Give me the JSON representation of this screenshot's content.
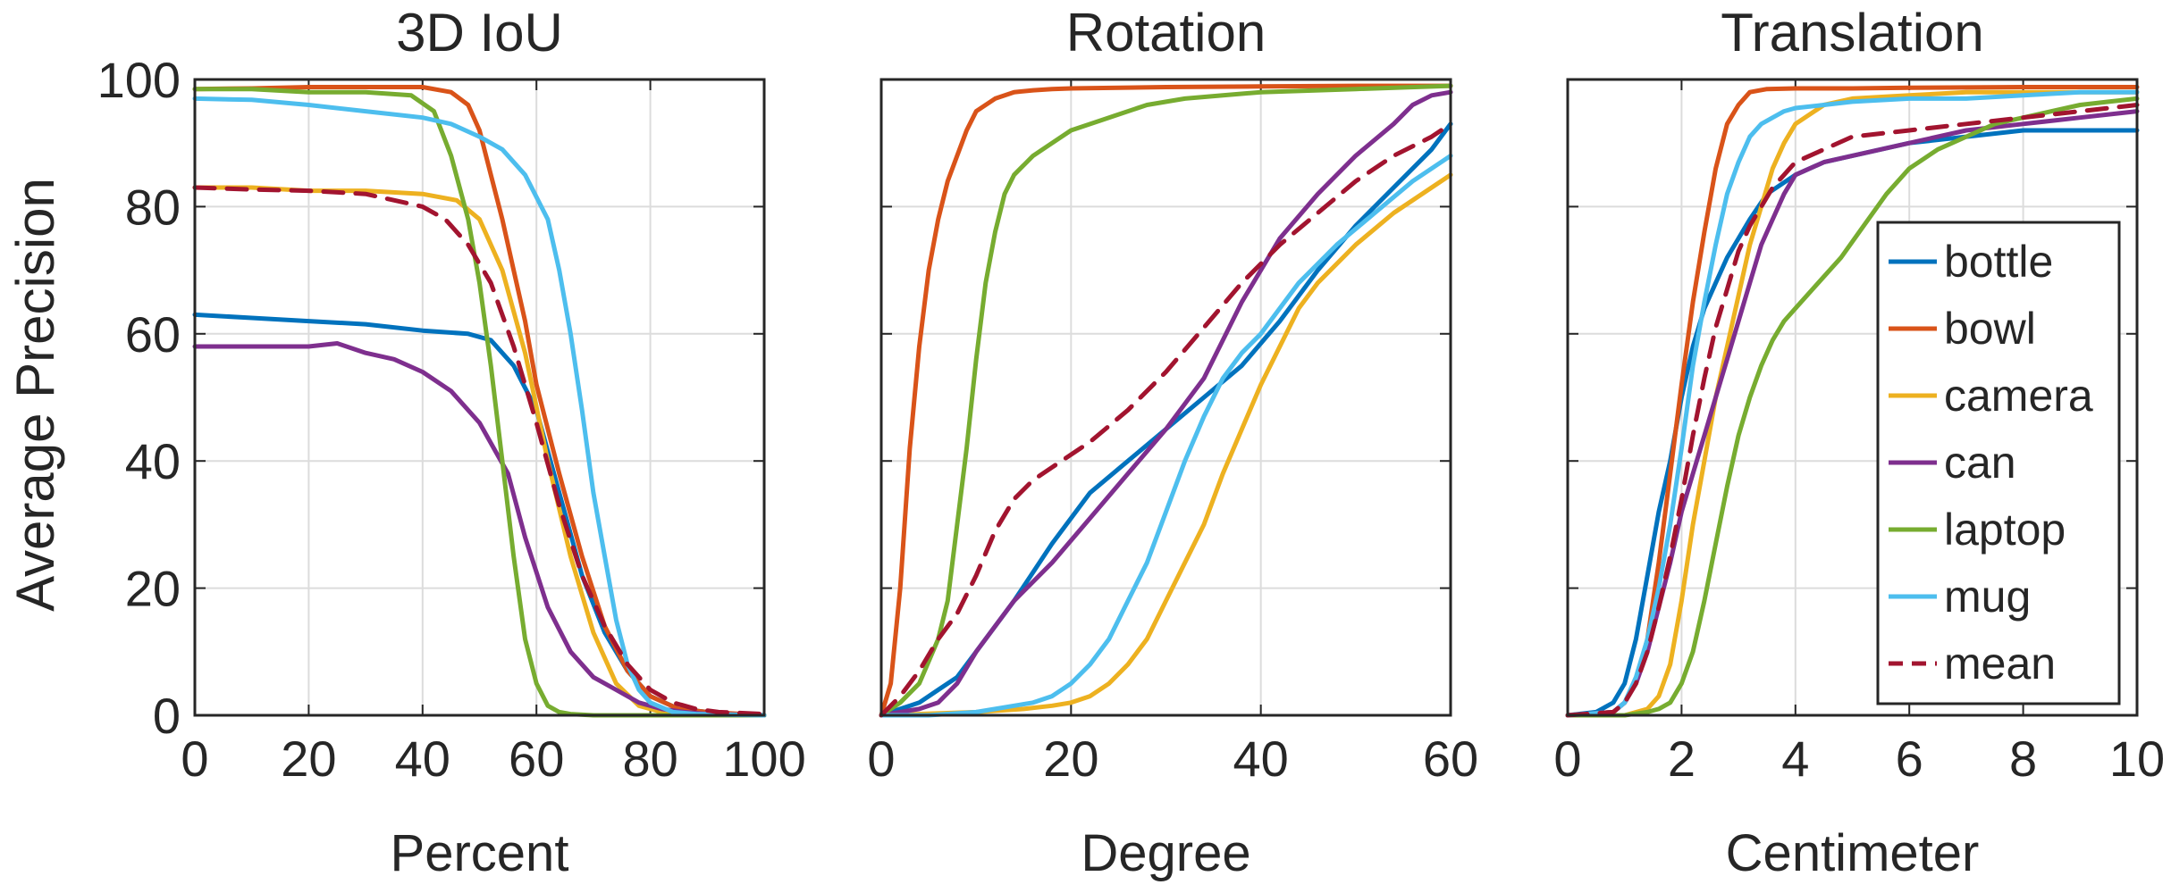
{
  "chart_data": [
    {
      "type": "line",
      "title": "3D IoU",
      "xlabel": "Percent",
      "ylabel": "Average Precision",
      "xlim": [
        0,
        100
      ],
      "ylim": [
        0,
        100
      ],
      "xticks": [
        0,
        20,
        40,
        60,
        80,
        100
      ],
      "yticks": [
        0,
        20,
        40,
        60,
        80,
        100
      ],
      "grid": true,
      "series": [
        {
          "name": "bottle",
          "x": [
            0,
            10,
            20,
            30,
            40,
            48,
            52,
            56,
            60,
            64,
            68,
            72,
            76,
            80,
            85,
            90,
            95,
            100
          ],
          "y": [
            63,
            62.5,
            62,
            61.5,
            60.5,
            60,
            59,
            55,
            48,
            35,
            22,
            13,
            7,
            3,
            1,
            0.5,
            0.2,
            0
          ]
        },
        {
          "name": "bowl",
          "x": [
            0,
            10,
            20,
            30,
            40,
            45,
            48,
            50,
            52,
            54,
            56,
            58,
            60,
            64,
            68,
            72,
            76,
            80,
            85,
            90,
            100
          ],
          "y": [
            98.5,
            98.6,
            98.8,
            98.8,
            98.8,
            98,
            96,
            92,
            85,
            78,
            70,
            62,
            52,
            38,
            25,
            14,
            7,
            3,
            1,
            0.5,
            0
          ]
        },
        {
          "name": "camera",
          "x": [
            0,
            10,
            20,
            30,
            40,
            46,
            50,
            54,
            58,
            62,
            66,
            70,
            74,
            78,
            82,
            86,
            100
          ],
          "y": [
            83,
            83,
            82.5,
            82.5,
            82,
            81,
            78,
            70,
            57,
            40,
            25,
            13,
            5,
            1.5,
            0.5,
            0,
            0
          ]
        },
        {
          "name": "can",
          "x": [
            0,
            10,
            20,
            25,
            30,
            35,
            40,
            45,
            50,
            55,
            58,
            62,
            66,
            70,
            74,
            78,
            82,
            86,
            90,
            100
          ],
          "y": [
            58,
            58,
            58,
            58.5,
            57,
            56,
            54,
            51,
            46,
            38,
            28,
            17,
            10,
            6,
            4,
            2,
            1,
            0.5,
            0.2,
            0
          ]
        },
        {
          "name": "laptop",
          "x": [
            0,
            10,
            20,
            30,
            38,
            42,
            45,
            48,
            50,
            52,
            54,
            56,
            58,
            60,
            62,
            64,
            66,
            70,
            80,
            100
          ],
          "y": [
            98.5,
            98.5,
            98,
            98,
            97.5,
            95,
            88,
            78,
            68,
            55,
            40,
            25,
            12,
            5,
            1.5,
            0.5,
            0.2,
            0,
            0,
            0
          ]
        },
        {
          "name": "mug",
          "x": [
            0,
            10,
            20,
            30,
            40,
            45,
            50,
            54,
            58,
            62,
            64,
            66,
            68,
            70,
            72,
            74,
            76,
            78,
            80,
            84,
            88,
            100
          ],
          "y": [
            97,
            96.8,
            96,
            95,
            94,
            93,
            91,
            89,
            85,
            78,
            70,
            60,
            48,
            35,
            25,
            15,
            8,
            4,
            2,
            0.5,
            0.2,
            0
          ]
        },
        {
          "name": "mean",
          "x": [
            0,
            10,
            20,
            30,
            40,
            44,
            48,
            52,
            56,
            60,
            64,
            68,
            72,
            76,
            80,
            84,
            88,
            92,
            100
          ],
          "y": [
            83,
            82.7,
            82.5,
            82,
            80,
            78,
            74,
            68,
            58,
            46,
            33,
            22,
            14,
            8,
            4,
            2,
            1,
            0.5,
            0.2
          ]
        }
      ]
    },
    {
      "type": "line",
      "title": "Rotation",
      "xlabel": "Degree",
      "ylabel": "",
      "xlim": [
        0,
        60
      ],
      "ylim": [
        0,
        100
      ],
      "xticks": [
        0,
        20,
        40,
        60
      ],
      "yticks": [
        0,
        20,
        40,
        60,
        80,
        100
      ],
      "grid": true,
      "series": [
        {
          "name": "bottle",
          "x": [
            0,
            2,
            4,
            6,
            8,
            10,
            14,
            18,
            22,
            26,
            30,
            34,
            38,
            42,
            46,
            50,
            54,
            58,
            60
          ],
          "y": [
            0,
            1,
            2,
            4,
            6,
            10,
            18,
            27,
            35,
            40,
            45,
            50,
            55,
            62,
            70,
            77,
            83,
            89,
            93
          ]
        },
        {
          "name": "bowl",
          "x": [
            0,
            1,
            2,
            3,
            4,
            5,
            6,
            7,
            8,
            9,
            10,
            12,
            14,
            16,
            18,
            20,
            30,
            40,
            50,
            60
          ],
          "y": [
            0,
            5,
            20,
            42,
            58,
            70,
            78,
            84,
            88,
            92,
            95,
            97,
            98,
            98.3,
            98.5,
            98.6,
            98.8,
            98.9,
            99,
            99
          ]
        },
        {
          "name": "camera",
          "x": [
            0,
            10,
            15,
            18,
            20,
            22,
            24,
            26,
            28,
            30,
            32,
            34,
            36,
            38,
            40,
            42,
            44,
            46,
            50,
            54,
            58,
            60
          ],
          "y": [
            0,
            0.5,
            1,
            1.5,
            2,
            3,
            5,
            8,
            12,
            18,
            24,
            30,
            38,
            45,
            52,
            58,
            64,
            68,
            74,
            79,
            83,
            85
          ]
        },
        {
          "name": "can",
          "x": [
            0,
            2,
            4,
            6,
            8,
            10,
            14,
            18,
            22,
            26,
            30,
            34,
            38,
            42,
            46,
            50,
            54,
            56,
            58,
            60
          ],
          "y": [
            0,
            0.5,
            1,
            2,
            5,
            10,
            18,
            24,
            31,
            38,
            45,
            53,
            65,
            75,
            82,
            88,
            93,
            96,
            97.5,
            98
          ]
        },
        {
          "name": "laptop",
          "x": [
            0,
            2,
            4,
            6,
            7,
            8,
            9,
            10,
            11,
            12,
            13,
            14,
            16,
            18,
            20,
            24,
            28,
            32,
            36,
            40,
            50,
            60
          ],
          "y": [
            0,
            2,
            5,
            12,
            18,
            30,
            42,
            56,
            68,
            76,
            82,
            85,
            88,
            90,
            92,
            94,
            96,
            97,
            97.5,
            98,
            98.5,
            99
          ]
        },
        {
          "name": "mug",
          "x": [
            0,
            5,
            10,
            12,
            14,
            16,
            18,
            20,
            22,
            24,
            26,
            28,
            30,
            32,
            34,
            36,
            38,
            40,
            44,
            48,
            52,
            56,
            60
          ],
          "y": [
            0,
            0,
            0.5,
            1,
            1.5,
            2,
            3,
            5,
            8,
            12,
            18,
            24,
            32,
            40,
            47,
            53,
            57,
            60,
            68,
            74,
            79,
            84,
            88
          ]
        },
        {
          "name": "mean",
          "x": [
            0,
            2,
            4,
            6,
            8,
            10,
            12,
            14,
            16,
            18,
            20,
            22,
            26,
            30,
            34,
            38,
            42,
            46,
            50,
            54,
            58,
            60
          ],
          "y": [
            0,
            3,
            7,
            12,
            16,
            22,
            29,
            34,
            37,
            39,
            41,
            43,
            48,
            54,
            61,
            68,
            74,
            79,
            84,
            88,
            91,
            93
          ]
        }
      ]
    },
    {
      "type": "line",
      "title": "Translation",
      "xlabel": "Centimeter",
      "ylabel": "",
      "xlim": [
        0,
        10
      ],
      "ylim": [
        0,
        100
      ],
      "xticks": [
        0,
        2,
        4,
        6,
        8,
        10
      ],
      "yticks": [
        0,
        20,
        40,
        60,
        80,
        100
      ],
      "grid": true,
      "series": [
        {
          "name": "bottle",
          "x": [
            0,
            0.5,
            0.8,
            1,
            1.2,
            1.4,
            1.6,
            1.8,
            2,
            2.2,
            2.4,
            2.6,
            2.8,
            3,
            3.2,
            3.5,
            4,
            4.5,
            5,
            6,
            7,
            8,
            9,
            9.5,
            10
          ],
          "y": [
            0,
            0.5,
            2,
            5,
            12,
            22,
            32,
            40,
            50,
            58,
            64,
            68,
            72,
            75,
            78,
            82,
            85,
            87,
            88,
            90,
            91,
            92,
            92,
            92,
            92
          ]
        },
        {
          "name": "bowl",
          "x": [
            0,
            0.8,
            1,
            1.2,
            1.4,
            1.6,
            1.8,
            2,
            2.2,
            2.4,
            2.6,
            2.8,
            3,
            3.2,
            3.5,
            4,
            5,
            6,
            8,
            10
          ],
          "y": [
            0,
            0.5,
            2,
            5,
            12,
            24,
            38,
            52,
            65,
            76,
            86,
            93,
            96,
            98,
            98.5,
            98.6,
            98.6,
            98.7,
            98.8,
            98.8
          ]
        },
        {
          "name": "camera",
          "x": [
            0,
            1,
            1.4,
            1.6,
            1.8,
            2,
            2.2,
            2.4,
            2.6,
            2.8,
            3,
            3.2,
            3.4,
            3.6,
            3.8,
            4,
            4.5,
            5,
            6,
            7,
            8,
            10
          ],
          "y": [
            0,
            0,
            1,
            3,
            8,
            18,
            30,
            40,
            50,
            58,
            66,
            74,
            80,
            86,
            90,
            93,
            96,
            97,
            97.5,
            98,
            98,
            98
          ]
        },
        {
          "name": "can",
          "x": [
            0,
            0.8,
            1,
            1.2,
            1.4,
            1.6,
            1.8,
            2,
            2.2,
            2.4,
            2.6,
            2.8,
            3,
            3.2,
            3.4,
            3.6,
            3.8,
            4,
            4.5,
            5,
            6,
            7,
            8,
            9,
            10
          ],
          "y": [
            0,
            0.5,
            2,
            5,
            10,
            17,
            24,
            32,
            38,
            44,
            50,
            56,
            62,
            68,
            74,
            78,
            82,
            85,
            87,
            88,
            90,
            92,
            93,
            94,
            95
          ]
        },
        {
          "name": "laptop",
          "x": [
            0,
            1,
            1.4,
            1.6,
            1.8,
            2,
            2.2,
            2.4,
            2.6,
            2.8,
            3,
            3.2,
            3.4,
            3.6,
            3.8,
            4,
            4.4,
            4.8,
            5.2,
            5.6,
            6,
            6.5,
            7,
            7.5,
            8,
            8.5,
            9,
            9.5,
            10
          ],
          "y": [
            0,
            0,
            0.5,
            1,
            2,
            5,
            10,
            18,
            27,
            36,
            44,
            50,
            55,
            59,
            62,
            64,
            68,
            72,
            77,
            82,
            86,
            89,
            91,
            93,
            94,
            95,
            96,
            96.5,
            97
          ]
        },
        {
          "name": "mug",
          "x": [
            0,
            0.8,
            1,
            1.2,
            1.4,
            1.6,
            1.8,
            2,
            2.2,
            2.4,
            2.6,
            2.8,
            3,
            3.2,
            3.4,
            3.6,
            3.8,
            4,
            4.5,
            5,
            6,
            7,
            8,
            9,
            10
          ],
          "y": [
            0,
            0.5,
            2,
            6,
            12,
            20,
            30,
            42,
            55,
            65,
            74,
            82,
            87,
            91,
            93,
            94,
            95,
            95.5,
            96,
            96.5,
            97,
            97,
            97.5,
            98,
            98
          ]
        },
        {
          "name": "mean",
          "x": [
            0,
            0.8,
            1,
            1.2,
            1.4,
            1.6,
            1.8,
            2,
            2.2,
            2.4,
            2.6,
            2.8,
            3,
            3.2,
            3.4,
            3.6,
            3.8,
            4,
            4.5,
            5,
            6,
            7,
            8,
            9,
            10
          ],
          "y": [
            0,
            0.5,
            2,
            5,
            10,
            17,
            25,
            34,
            44,
            53,
            61,
            67,
            73,
            77,
            80,
            83,
            85,
            87,
            89,
            91,
            92,
            93,
            94,
            95,
            96
          ]
        }
      ]
    }
  ],
  "legend": {
    "placement": "inside-right (Translation panel)",
    "entries": [
      {
        "name": "bottle",
        "color": "#0072BD",
        "style": "solid"
      },
      {
        "name": "bowl",
        "color": "#D95319",
        "style": "solid"
      },
      {
        "name": "camera",
        "color": "#EDB120",
        "style": "solid"
      },
      {
        "name": "can",
        "color": "#7E2F8E",
        "style": "solid"
      },
      {
        "name": "laptop",
        "color": "#77AC30",
        "style": "solid"
      },
      {
        "name": "mug",
        "color": "#4DBEEE",
        "style": "solid"
      },
      {
        "name": "mean",
        "color": "#A2142F",
        "style": "dashed"
      }
    ]
  }
}
